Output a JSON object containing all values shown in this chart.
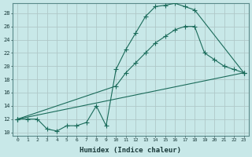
{
  "title": "",
  "xlabel": "Humidex (Indice chaleur)",
  "bg_color": "#c8e8e8",
  "grid_color": "#b0c8c8",
  "line_color": "#1a6b5a",
  "xlim": [
    -0.5,
    23.5
  ],
  "ylim": [
    9.5,
    29.5
  ],
  "xticks": [
    0,
    1,
    2,
    3,
    4,
    5,
    6,
    7,
    8,
    9,
    10,
    11,
    12,
    13,
    14,
    15,
    16,
    17,
    18,
    19,
    20,
    21,
    22,
    23
  ],
  "yticks": [
    10,
    12,
    14,
    16,
    18,
    20,
    22,
    24,
    26,
    28
  ],
  "line1_x": [
    0,
    1,
    2,
    3,
    4,
    5,
    6,
    7,
    8,
    9,
    10,
    11,
    12,
    13,
    14,
    15,
    16,
    17,
    18,
    23
  ],
  "line1_y": [
    12,
    12,
    12,
    10.5,
    10.2,
    11,
    11,
    11.5,
    14,
    11,
    19.5,
    22.5,
    25,
    27.5,
    29,
    29.2,
    29.5,
    29,
    28.5,
    19
  ],
  "line2_x": [
    0,
    10,
    11,
    12,
    13,
    14,
    15,
    16,
    17,
    18,
    19,
    20,
    21,
    22,
    23
  ],
  "line2_y": [
    12,
    17,
    19,
    20.5,
    22,
    23.5,
    24.5,
    25.5,
    26,
    26,
    22,
    21,
    20,
    19.5,
    19
  ],
  "line3_x": [
    0,
    23
  ],
  "line3_y": [
    12,
    19
  ]
}
